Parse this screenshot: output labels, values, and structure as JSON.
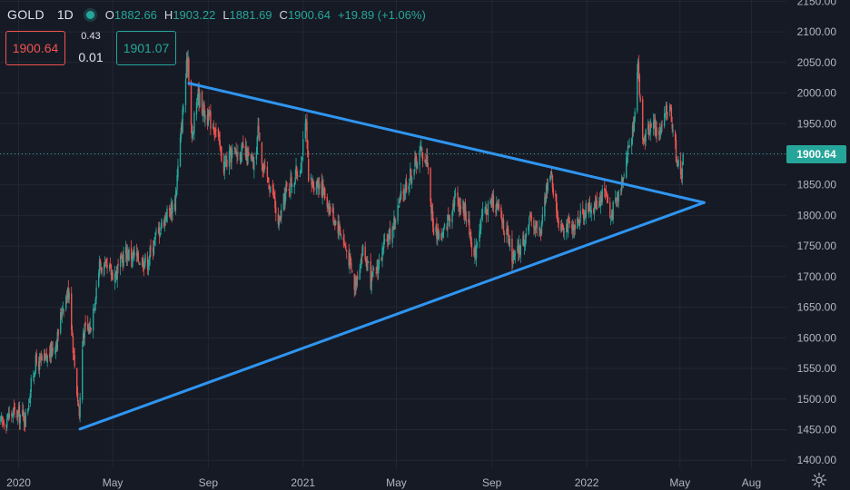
{
  "header": {
    "symbol": "GOLD",
    "interval": "1D",
    "open_key": "O",
    "open": "1882.66",
    "high_key": "H",
    "high": "1903.22",
    "low_key": "L",
    "low": "1881.69",
    "close_key": "C",
    "close": "1900.64",
    "change": "+19.89 (+1.06%)"
  },
  "trade_panel": {
    "sell_price": "1900.64",
    "spread_top": "0.43",
    "spread_bottom": "0.01",
    "buy_price": "1901.07"
  },
  "last_price_label": "1900.64",
  "colors": {
    "background": "#161a25",
    "up": "#26a69a",
    "down": "#ef5350",
    "trendline": "#2f95f0",
    "grid": "#232734"
  },
  "icons": {
    "settings": "gear-icon",
    "live_status": "live-dot-icon"
  },
  "chart_data": {
    "type": "candlestick",
    "x_tick_labels": [
      "2020",
      "May",
      "Sep",
      "2021",
      "May",
      "Sep",
      "2022",
      "May",
      "Aug"
    ],
    "x_tick_dates": [
      "2020-01-01",
      "2020-05-01",
      "2020-09-01",
      "2021-01-01",
      "2021-05-01",
      "2021-09-01",
      "2022-01-01",
      "2022-05-01",
      "2022-08-01"
    ],
    "x_range": [
      "2019-12-08",
      "2022-09-15"
    ],
    "y_tick_labels": [
      "1400.00",
      "1450.00",
      "1500.00",
      "1550.00",
      "1600.00",
      "1650.00",
      "1700.00",
      "1750.00",
      "1800.00",
      "1850.00",
      "1900.00",
      "1950.00",
      "2000.00",
      "2050.00",
      "2100.00",
      "2150.00"
    ],
    "y_ticks": [
      1400,
      1450,
      1500,
      1550,
      1600,
      1650,
      1700,
      1750,
      1800,
      1850,
      1900,
      1950,
      2000,
      2050,
      2100,
      2150
    ],
    "y_range": [
      1387,
      2152
    ],
    "grid": true,
    "last_price": 1900.64,
    "close_path": [
      [
        "2019-12-08",
        1460
      ],
      [
        "2019-12-25",
        1478
      ],
      [
        "2020-01-10",
        1470
      ],
      [
        "2020-01-22",
        1558
      ],
      [
        "2020-02-05",
        1562
      ],
      [
        "2020-02-20",
        1600
      ],
      [
        "2020-02-26",
        1650
      ],
      [
        "2020-03-06",
        1680
      ],
      [
        "2020-03-12",
        1570
      ],
      [
        "2020-03-19",
        1475
      ],
      [
        "2020-03-24",
        1610
      ],
      [
        "2020-04-02",
        1615
      ],
      [
        "2020-04-14",
        1720
      ],
      [
        "2020-04-22",
        1710
      ],
      [
        "2020-05-05",
        1705
      ],
      [
        "2020-05-18",
        1740
      ],
      [
        "2020-06-01",
        1730
      ],
      [
        "2020-06-15",
        1725
      ],
      [
        "2020-06-25",
        1765
      ],
      [
        "2020-07-08",
        1800
      ],
      [
        "2020-07-20",
        1820
      ],
      [
        "2020-07-28",
        1935
      ],
      [
        "2020-08-04",
        2040
      ],
      [
        "2020-08-06",
        2060
      ],
      [
        "2020-08-11",
        1920
      ],
      [
        "2020-08-18",
        2000
      ],
      [
        "2020-08-28",
        1965
      ],
      [
        "2020-09-10",
        1945
      ],
      [
        "2020-09-21",
        1880
      ],
      [
        "2020-10-01",
        1900
      ],
      [
        "2020-10-15",
        1905
      ],
      [
        "2020-10-30",
        1880
      ],
      [
        "2020-11-05",
        1950
      ],
      [
        "2020-11-10",
        1875
      ],
      [
        "2020-11-23",
        1840
      ],
      [
        "2020-11-30",
        1780
      ],
      [
        "2020-12-10",
        1840
      ],
      [
        "2020-12-28",
        1878
      ],
      [
        "2021-01-05",
        1950
      ],
      [
        "2021-01-08",
        1850
      ],
      [
        "2021-01-22",
        1855
      ],
      [
        "2021-02-05",
        1810
      ],
      [
        "2021-02-18",
        1775
      ],
      [
        "2021-03-01",
        1730
      ],
      [
        "2021-03-08",
        1685
      ],
      [
        "2021-03-19",
        1745
      ],
      [
        "2021-03-30",
        1690
      ],
      [
        "2021-04-12",
        1735
      ],
      [
        "2021-04-26",
        1780
      ],
      [
        "2021-05-10",
        1840
      ],
      [
        "2021-05-24",
        1880
      ],
      [
        "2021-06-01",
        1905
      ],
      [
        "2021-06-10",
        1890
      ],
      [
        "2021-06-17",
        1780
      ],
      [
        "2021-06-29",
        1765
      ],
      [
        "2021-07-08",
        1800
      ],
      [
        "2021-07-15",
        1830
      ],
      [
        "2021-07-28",
        1810
      ],
      [
        "2021-08-06",
        1760
      ],
      [
        "2021-08-09",
        1730
      ],
      [
        "2021-08-16",
        1785
      ],
      [
        "2021-08-27",
        1815
      ],
      [
        "2021-09-03",
        1825
      ],
      [
        "2021-09-15",
        1790
      ],
      [
        "2021-09-29",
        1725
      ],
      [
        "2021-10-12",
        1760
      ],
      [
        "2021-10-22",
        1795
      ],
      [
        "2021-11-03",
        1770
      ],
      [
        "2021-11-12",
        1865
      ],
      [
        "2021-11-17",
        1860
      ],
      [
        "2021-11-26",
        1790
      ],
      [
        "2021-12-06",
        1785
      ],
      [
        "2021-12-15",
        1770
      ],
      [
        "2021-12-24",
        1805
      ],
      [
        "2022-01-05",
        1810
      ],
      [
        "2022-01-14",
        1820
      ],
      [
        "2022-01-25",
        1845
      ],
      [
        "2022-01-31",
        1795
      ],
      [
        "2022-02-10",
        1830
      ],
      [
        "2022-02-22",
        1900
      ],
      [
        "2022-03-01",
        1940
      ],
      [
        "2022-03-08",
        2040
      ],
      [
        "2022-03-10",
        2000
      ],
      [
        "2022-03-15",
        1920
      ],
      [
        "2022-03-25",
        1955
      ],
      [
        "2022-04-04",
        1930
      ],
      [
        "2022-04-18",
        1985
      ],
      [
        "2022-04-26",
        1900
      ],
      [
        "2022-05-02",
        1860
      ],
      [
        "2022-05-04",
        1882.66
      ],
      [
        "2022-05-05",
        1900.64
      ]
    ],
    "trendlines": [
      {
        "name": "upper",
        "from": [
          "2020-08-07",
          2016
        ],
        "to": [
          "2022-06-01",
          1821
        ]
      },
      {
        "name": "lower",
        "from": [
          "2020-03-20",
          1451
        ],
        "to": [
          "2022-06-01",
          1821
        ]
      }
    ]
  }
}
